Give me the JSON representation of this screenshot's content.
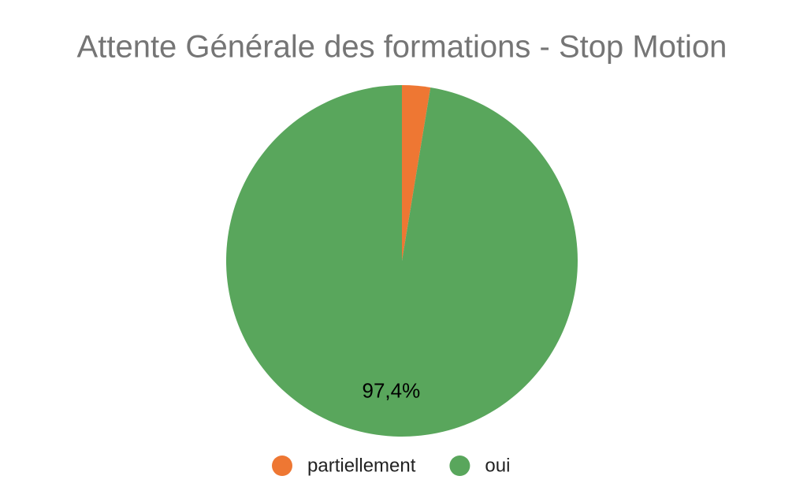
{
  "chart_data": {
    "type": "pie",
    "title": "Attente Générale des formations - Stop Motion",
    "categories": [
      "partiellement",
      "oui"
    ],
    "values": [
      2.6,
      97.4
    ],
    "value_labels": [
      null,
      "97,4%"
    ],
    "colors": [
      "#ee7733",
      "#59a65c"
    ],
    "legend": "bottom"
  }
}
